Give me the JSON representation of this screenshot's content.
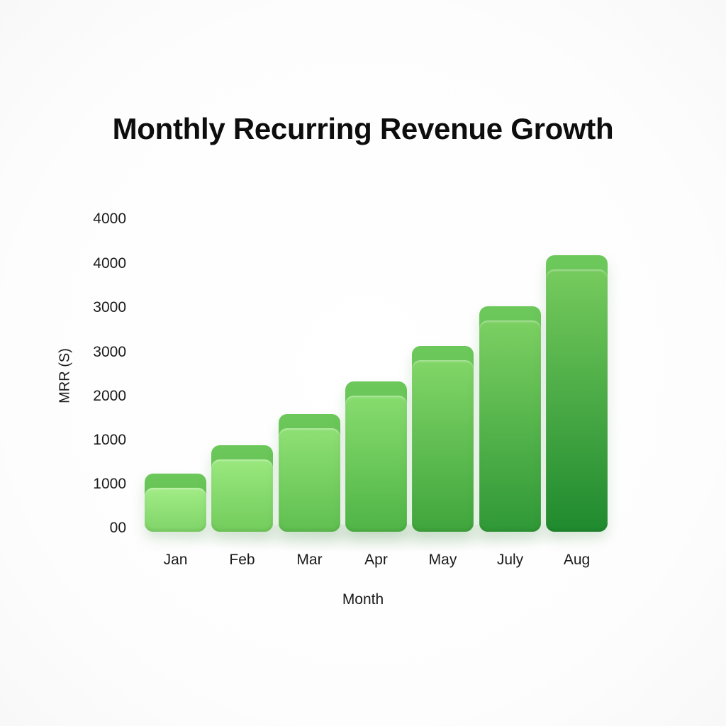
{
  "chart_data": {
    "type": "bar",
    "title": "Monthly Recurring Revenue Growth",
    "xlabel": "Month",
    "ylabel": "MRR (S)",
    "categories": [
      "Jan",
      "Feb",
      "Mar",
      "Apr",
      "May",
      "July",
      "Aug"
    ],
    "values": [
      620,
      940,
      1290,
      1660,
      2060,
      2510,
      3090
    ],
    "y_tick_labels": [
      "00",
      "1000",
      "1000",
      "2000",
      "3000",
      "3000",
      "4000",
      "4000"
    ],
    "ylim": [
      0,
      3500
    ],
    "grid": false,
    "legend": null,
    "colors": {
      "light_start": "#9be87f",
      "dark_end": "#1f8a2e",
      "cap": "#62bf50"
    }
  },
  "title": "Monthly Recurring Revenue Growth",
  "axes": {
    "ylabel": "MRR (S)",
    "xlabel": "Month",
    "yticks": [
      "4000",
      "4000",
      "3000",
      "3000",
      "2000",
      "1000",
      "1000",
      "00"
    ],
    "xticks": [
      "Jan",
      "Feb",
      "Mar",
      "Apr",
      "May",
      "July",
      "Aug"
    ]
  }
}
